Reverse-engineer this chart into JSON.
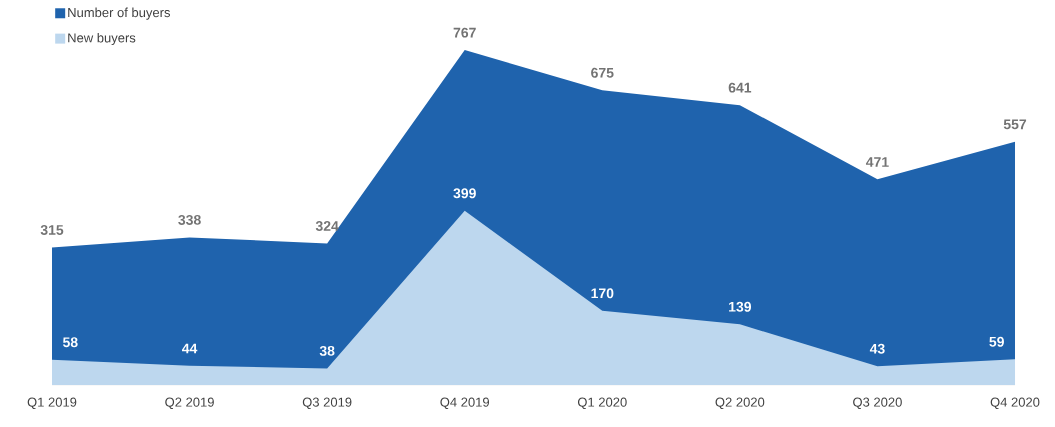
{
  "chart_data": {
    "type": "area",
    "categories": [
      "Q1 2019",
      "Q2 2019",
      "Q3 2019",
      "Q4 2019",
      "Q1 2020",
      "Q2 2020",
      "Q3 2020",
      "Q4 2020"
    ],
    "series": [
      {
        "name": "Number of buyers",
        "color": "#1f63ad",
        "values": [
          315,
          338,
          324,
          767,
          675,
          641,
          471,
          557
        ]
      },
      {
        "name": "New buyers",
        "color": "#bdd7ee",
        "values": [
          58,
          44,
          38,
          399,
          170,
          139,
          43,
          59
        ]
      }
    ],
    "data_labels": true,
    "legend": "top left"
  }
}
